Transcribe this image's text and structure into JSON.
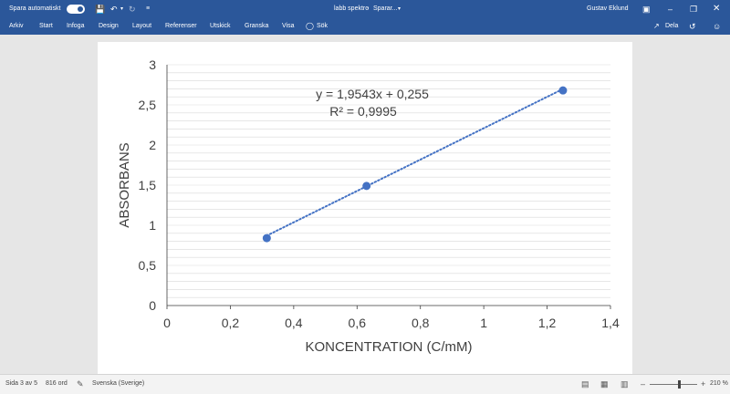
{
  "titlebar": {
    "autosave_label": "Spara automatiskt",
    "doc_title": "labb spektro",
    "save_state": "Sparar...",
    "user": "Gustav Eklund",
    "save_icon": "save-icon",
    "undo_icon": "undo-icon",
    "redo_icon": "redo-icon",
    "qa_customize_icon": "customize-icon"
  },
  "ribbon": {
    "tabs": [
      "Arkiv",
      "Start",
      "Infoga",
      "Design",
      "Layout",
      "Referenser",
      "Utskick",
      "Granska",
      "Visa"
    ],
    "search_label": "Sök",
    "share_label": "Dela"
  },
  "chart_data": {
    "type": "scatter",
    "x": [
      0.315,
      0.63,
      1.25
    ],
    "y": [
      0.84,
      1.49,
      2.68
    ],
    "title": "",
    "xlabel": "KONCENTRATION  (C/mM)",
    "ylabel": "ABSORBANS",
    "xlim": [
      0,
      1.4
    ],
    "ylim": [
      0,
      3
    ],
    "xticks": [
      0,
      0.2,
      0.4,
      0.6,
      0.8,
      1,
      1.2,
      1.4
    ],
    "xtick_labels": [
      "0",
      "0,2",
      "0,4",
      "0,6",
      "0,8",
      "1",
      "1,2",
      "1,4"
    ],
    "yticks": [
      0,
      0.5,
      1,
      1.5,
      2,
      2.5,
      3
    ],
    "ytick_labels": [
      "0",
      "0,5",
      "1",
      "1,5",
      "2",
      "2,5",
      "3"
    ],
    "trendline": {
      "slope": 1.9543,
      "intercept": 0.255,
      "x_range": [
        0.315,
        1.25
      ],
      "style": "dotted"
    },
    "annotations": [
      "y = 1,9543x + 0,255",
      "R² = 0,9995"
    ],
    "grid": true,
    "legend": "none",
    "colors": {
      "series": "#4472c4",
      "grid": "#d9d9d9",
      "axis": "#404040"
    }
  },
  "status": {
    "page": "Sida 3 av 5",
    "words": "816 ord",
    "language": "Svenska (Sverige)",
    "zoom": "210 %",
    "zoom_level": 0.62
  }
}
